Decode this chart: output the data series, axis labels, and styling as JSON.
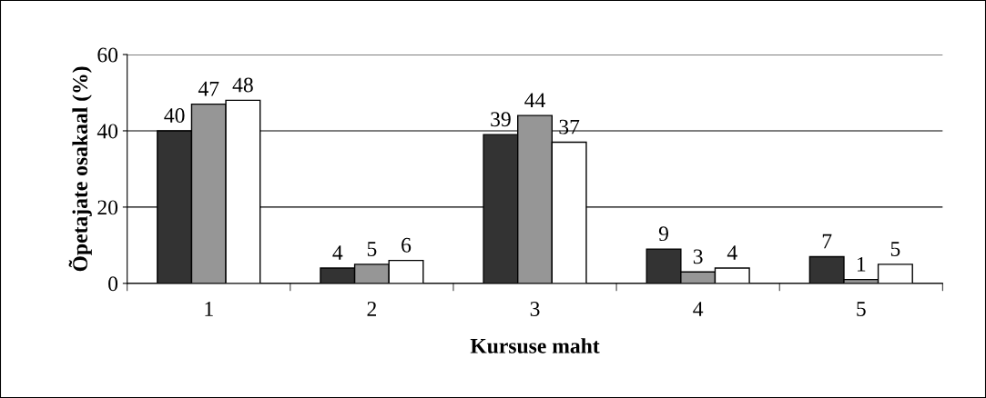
{
  "chart_data": {
    "type": "bar",
    "xlabel": "Kursuse maht",
    "ylabel": "Õpetajate osakaal (%)",
    "categories": [
      "1",
      "2",
      "3",
      "4",
      "5"
    ],
    "series": [
      {
        "color": "#333333",
        "values": [
          40,
          4,
          39,
          9,
          7
        ]
      },
      {
        "color": "#969696",
        "values": [
          47,
          5,
          44,
          3,
          1
        ]
      },
      {
        "color": "#ffffff",
        "values": [
          48,
          6,
          37,
          4,
          5
        ]
      }
    ],
    "ylim": [
      0,
      60
    ],
    "yticks": [
      0,
      20,
      40,
      60
    ],
    "grid": "y",
    "data_labels": true,
    "legend": false
  }
}
